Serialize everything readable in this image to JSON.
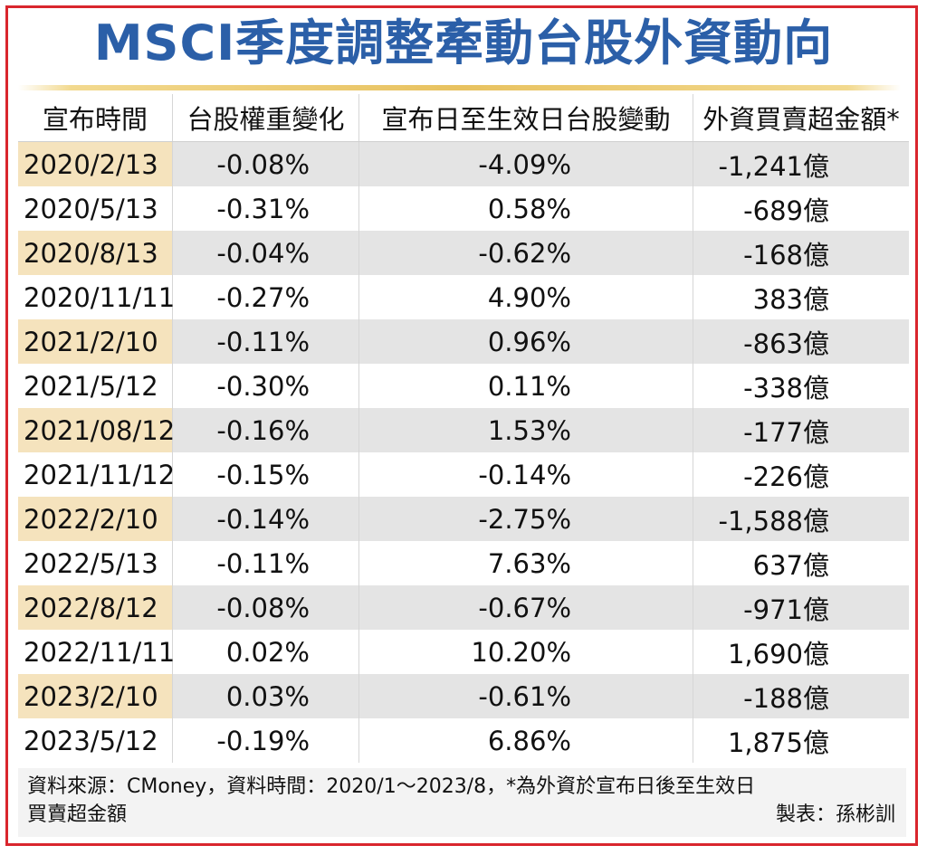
{
  "chart_data": {
    "type": "table",
    "title": "MSCI季度調整牽動台股外資動向",
    "columns": [
      "宣布時間",
      "台股權重變化",
      "宣布日至生效日台股變動",
      "外資買賣超金額*"
    ],
    "rows": [
      {
        "date": "2020/2/13",
        "weight": "-0.08%",
        "change": "-4.09%",
        "flow": "-1,241億"
      },
      {
        "date": "2020/5/13",
        "weight": "-0.31%",
        "change": "0.58%",
        "flow": "-689億"
      },
      {
        "date": "2020/8/13",
        "weight": "-0.04%",
        "change": "-0.62%",
        "flow": "-168億"
      },
      {
        "date": "2020/11/11",
        "weight": "-0.27%",
        "change": "4.90%",
        "flow": "383億"
      },
      {
        "date": "2021/2/10",
        "weight": "-0.11%",
        "change": "0.96%",
        "flow": "-863億"
      },
      {
        "date": "2021/5/12",
        "weight": "-0.30%",
        "change": "0.11%",
        "flow": "-338億"
      },
      {
        "date": "2021/08/12",
        "weight": "-0.16%",
        "change": "1.53%",
        "flow": "-177億"
      },
      {
        "date": "2021/11/12",
        "weight": "-0.15%",
        "change": "-0.14%",
        "flow": "-226億"
      },
      {
        "date": "2022/2/10",
        "weight": "-0.14%",
        "change": "-2.75%",
        "flow": "-1,588億"
      },
      {
        "date": "2022/5/13",
        "weight": "-0.11%",
        "change": "7.63%",
        "flow": "637億"
      },
      {
        "date": "2022/8/12",
        "weight": "-0.08%",
        "change": "-0.67%",
        "flow": "-971億"
      },
      {
        "date": "2022/11/11",
        "weight": "0.02%",
        "change": "10.20%",
        "flow": "1,690億"
      },
      {
        "date": "2023/2/10",
        "weight": "0.03%",
        "change": "-0.61%",
        "flow": "-188億"
      },
      {
        "date": "2023/5/12",
        "weight": "-0.19%",
        "change": "6.86%",
        "flow": "1,875億"
      }
    ],
    "footnote_line1": "資料來源：CMoney，資料時間：2020/1～2023/8，*為外資於宣布日後至生效日",
    "footnote_line2": "買賣超金額",
    "credit": "製表：孫彬訓"
  },
  "colors": {
    "title": "#2b5fa8",
    "border": "#d9262d",
    "date_highlight": "#f5e3bd",
    "row_alt": "#e4e4e4",
    "title_rule": "#e8c260"
  }
}
